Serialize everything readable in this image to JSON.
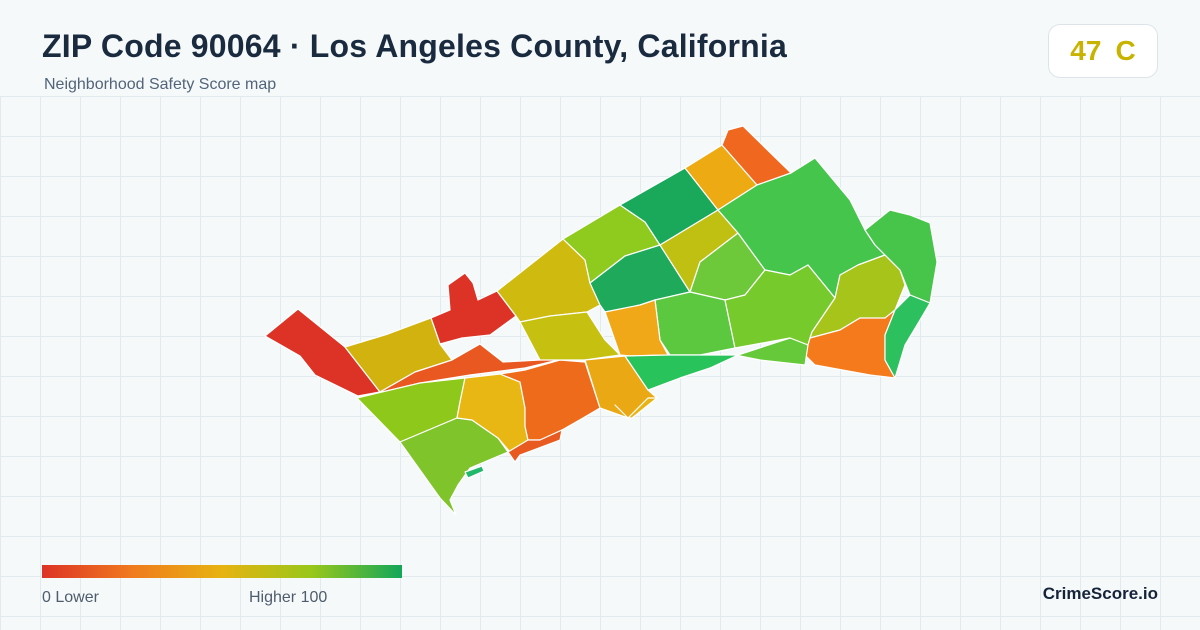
{
  "header": {
    "title": "ZIP Code 90064 · Los Angeles County, California",
    "subtitle": "Neighborhood Safety Score map"
  },
  "score_badge": {
    "score": "47",
    "grade": "C",
    "grade_color": "#c7b300"
  },
  "legend": {
    "min_label": "0  Lower",
    "max_label": "Higher  100",
    "scale_colors": [
      "#dd3326",
      "#f07a1e",
      "#e7b311",
      "#98c71a",
      "#13a65a"
    ]
  },
  "brand": "CrimeScore.io",
  "map": {
    "border_color": "#ffffff",
    "regions": [
      {
        "name": "west-tip",
        "color": "#dd3326"
      },
      {
        "name": "north-notch",
        "color": "#dd3326"
      },
      {
        "name": "west-upper",
        "color": "#d2b20f"
      },
      {
        "name": "diagonal-band",
        "color": "#e85820"
      },
      {
        "name": "west-lower",
        "color": "#8ec81a"
      },
      {
        "name": "south-west",
        "color": "#7fc42a"
      },
      {
        "name": "central-inner",
        "color": "#e8b713"
      },
      {
        "name": "central-orange",
        "color": "#ef6b1c"
      },
      {
        "name": "central-north",
        "color": "#cfbb10"
      },
      {
        "name": "central-olive",
        "color": "#c6c010"
      },
      {
        "name": "central-amber",
        "color": "#eba815"
      },
      {
        "name": "north-lime",
        "color": "#8ecb1e"
      },
      {
        "name": "north-green",
        "color": "#1aa85a"
      },
      {
        "name": "north-amber",
        "color": "#edaa12"
      },
      {
        "name": "north-orange",
        "color": "#f06820"
      },
      {
        "name": "mid-green",
        "color": "#1eaa5a"
      },
      {
        "name": "mid-olive",
        "color": "#bfc012"
      },
      {
        "name": "mid-lime",
        "color": "#6dc93a"
      },
      {
        "name": "mid-lime-2",
        "color": "#5cc840"
      },
      {
        "name": "mid-amber",
        "color": "#f0a818"
      },
      {
        "name": "south-green",
        "color": "#29c35c"
      },
      {
        "name": "south-strip",
        "color": "#e85a20"
      },
      {
        "name": "south-tab",
        "color": "#e9b311"
      },
      {
        "name": "east-large",
        "color": "#45c54c"
      },
      {
        "name": "east-lime",
        "color": "#77ca2c"
      },
      {
        "name": "east-olive",
        "color": "#a7c41a"
      },
      {
        "name": "east-right",
        "color": "#47c54a"
      },
      {
        "name": "east-orange",
        "color": "#f47a1c"
      },
      {
        "name": "east-green-strip",
        "color": "#2dc05e"
      },
      {
        "name": "east-south",
        "color": "#66c93a"
      },
      {
        "name": "sw-sliver",
        "color": "#22b86a"
      }
    ]
  }
}
